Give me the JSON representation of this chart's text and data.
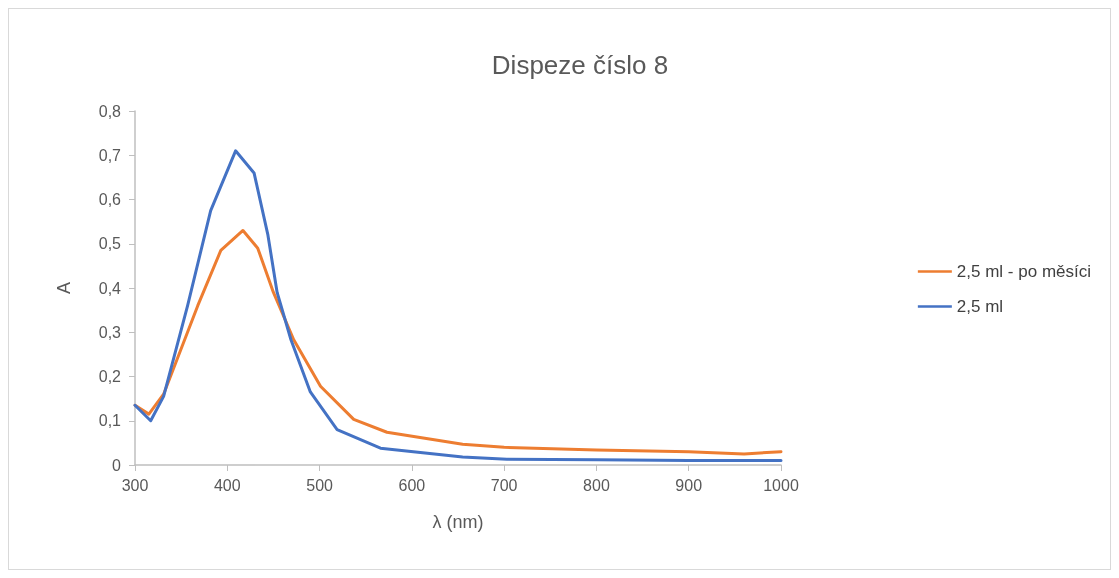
{
  "chart_data": {
    "type": "line",
    "title": "Dispeze číslo 8",
    "xlabel": "λ (nm)",
    "ylabel": "A",
    "xlim": [
      300,
      1000
    ],
    "xticks": [
      300,
      400,
      500,
      600,
      700,
      800,
      900,
      1000
    ],
    "ylim": [
      0,
      0.8
    ],
    "yticks": [
      0,
      {
        "value": 0.1,
        "label": "0,1"
      },
      {
        "value": 0.2,
        "label": "0,2"
      },
      {
        "value": 0.3,
        "label": "0,3"
      },
      {
        "value": 0.4,
        "label": "0,4"
      },
      {
        "value": 0.5,
        "label": "0,5"
      },
      {
        "value": 0.6,
        "label": "0,6"
      },
      {
        "value": 0.7,
        "label": "0,7"
      },
      {
        "value": 0.8,
        "label": "0,8"
      }
    ],
    "grid": false,
    "legend": "right",
    "marker": "none",
    "line_style": "solid",
    "series": [
      {
        "name": "2,5 ml - po měsíci",
        "color": "#ed7d31",
        "x": [
          300,
          315,
          331,
          368,
          393,
          417,
          433,
          450,
          472,
          501,
          537,
          573,
          655,
          700,
          800,
          900,
          960,
          1000
        ],
        "values": [
          0.135,
          0.115,
          0.16,
          0.36,
          0.485,
          0.53,
          0.49,
          0.39,
          0.283,
          0.178,
          0.103,
          0.074,
          0.047,
          0.04,
          0.034,
          0.03,
          0.025,
          0.03
        ]
      },
      {
        "name": "2,5 ml",
        "color": "#4472c4",
        "x": [
          300,
          317,
          331,
          357,
          382,
          409,
          429,
          444,
          454,
          469,
          490,
          519,
          566,
          655,
          703,
          800,
          900,
          1000
        ],
        "values": [
          0.135,
          0.1,
          0.155,
          0.36,
          0.575,
          0.71,
          0.66,
          0.52,
          0.39,
          0.283,
          0.165,
          0.08,
          0.038,
          0.018,
          0.013,
          0.012,
          0.01,
          0.01
        ]
      }
    ]
  }
}
